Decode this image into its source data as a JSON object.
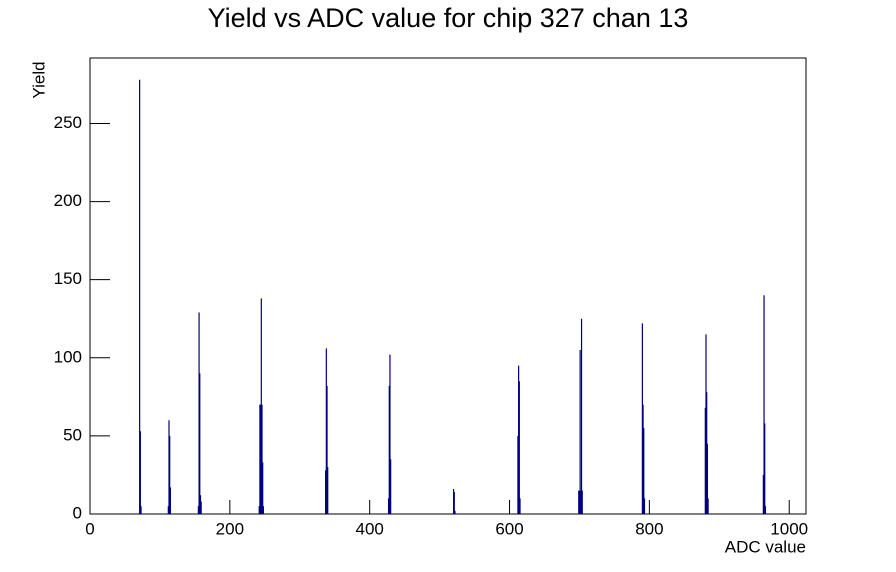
{
  "chart_data": {
    "type": "histogram",
    "title": "Yield vs ADC value for chip 327 chan 13",
    "x_label": "ADC value",
    "y_label": "Yield",
    "color": "#000080",
    "x": [
      71,
      72,
      73,
      112,
      113,
      114,
      115,
      155,
      156,
      157,
      158,
      159,
      242,
      243,
      244,
      245,
      246,
      247,
      248,
      337,
      338,
      339,
      340,
      427,
      428,
      429,
      430,
      520,
      521,
      522,
      612,
      613,
      614,
      615,
      699,
      700,
      701,
      702,
      703,
      704,
      790,
      791,
      792,
      793,
      880,
      881,
      882,
      883,
      884,
      963,
      964,
      965,
      966
    ],
    "values": [
      278,
      53,
      5,
      5,
      60,
      50,
      17,
      5,
      129,
      90,
      12,
      8,
      5,
      70,
      70,
      138,
      70,
      33,
      5,
      28,
      106,
      82,
      30,
      10,
      82,
      102,
      35,
      16,
      14,
      2,
      50,
      95,
      85,
      10,
      15,
      15,
      105,
      15,
      125,
      15,
      122,
      70,
      55,
      10,
      68,
      115,
      78,
      45,
      10,
      25,
      140,
      58,
      5
    ],
    "xlim": [
      0,
      1024
    ],
    "xticks": [
      0,
      200,
      400,
      600,
      800,
      1000
    ],
    "ylim": [
      0,
      291.9
    ],
    "yticks": [
      0,
      50,
      100,
      150,
      200,
      250
    ]
  }
}
